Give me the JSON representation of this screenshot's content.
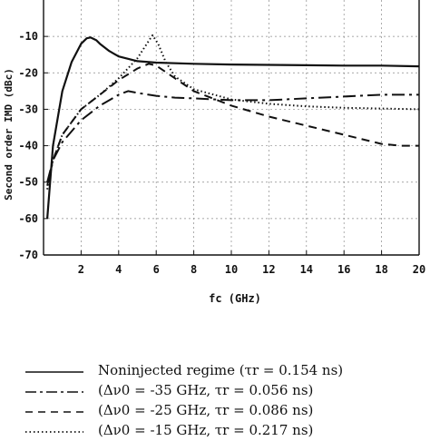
{
  "chart_data": {
    "type": "line",
    "xlabel": "fc (GHz)",
    "ylabel": "Second order IMD (dBc)",
    "xlim": [
      0,
      20
    ],
    "ylim": [
      -70,
      0
    ],
    "xticks": [
      2,
      4,
      6,
      8,
      10,
      12,
      14,
      16,
      18,
      20
    ],
    "yticks": [
      -10,
      -20,
      -30,
      -40,
      -50,
      -60,
      -70
    ],
    "grid": true,
    "legend_placement": "below plot",
    "series": [
      {
        "name": "Noninjected regime (τr = 0.154 ns)",
        "style": "solid",
        "x": [
          0.2,
          0.5,
          1,
          1.5,
          2,
          2.3,
          2.5,
          2.8,
          3,
          3.5,
          4,
          5,
          6,
          8,
          10,
          12,
          14,
          16,
          18,
          20
        ],
        "y": [
          -60,
          -40,
          -25,
          -17,
          -12,
          -10.5,
          -10.3,
          -11,
          -12,
          -14,
          -15.5,
          -16.8,
          -17.2,
          -17.5,
          -17.7,
          -17.8,
          -17.9,
          -18,
          -18,
          -18.2
        ]
      },
      {
        "name": "(Δν0 = -35 GHz, τr = 0.056 ns)",
        "style": "dash-dot",
        "x": [
          0.2,
          0.5,
          1,
          2,
          3,
          4,
          4.5,
          5,
          6,
          7,
          8,
          10,
          12,
          14,
          16,
          18,
          20
        ],
        "y": [
          -50,
          -44,
          -39,
          -33,
          -29,
          -26,
          -25,
          -25.5,
          -26.3,
          -26.8,
          -27,
          -27.5,
          -27.5,
          -27,
          -26.5,
          -26,
          -26
        ]
      },
      {
        "name": "(Δν0 = -25 GHz, τr = 0.086 ns)",
        "style": "dashed",
        "x": [
          0.2,
          0.5,
          1,
          2,
          3,
          4,
          5,
          5.6,
          6,
          7,
          8,
          10,
          12,
          14,
          16,
          18,
          19,
          20
        ],
        "y": [
          -51,
          -44,
          -37,
          -30,
          -26,
          -22,
          -18.8,
          -17.5,
          -18,
          -21.5,
          -25,
          -29,
          -32,
          -34.5,
          -37,
          -39.5,
          -40,
          -40
        ]
      },
      {
        "name": "(Δν0 = -15 GHz, τr = 0.217 ns)",
        "style": "dotted",
        "x": [
          0.2,
          0.5,
          1,
          2,
          3,
          4,
          5,
          5.5,
          5.8,
          6.1,
          6.5,
          7,
          8,
          10,
          12,
          14,
          16,
          18,
          20
        ],
        "y": [
          -52,
          -44,
          -37,
          -30,
          -26,
          -21.5,
          -16,
          -12,
          -9.7,
          -12,
          -17,
          -21,
          -24.5,
          -27.3,
          -28.5,
          -29.2,
          -29.6,
          -29.8,
          -30
        ]
      }
    ]
  }
}
